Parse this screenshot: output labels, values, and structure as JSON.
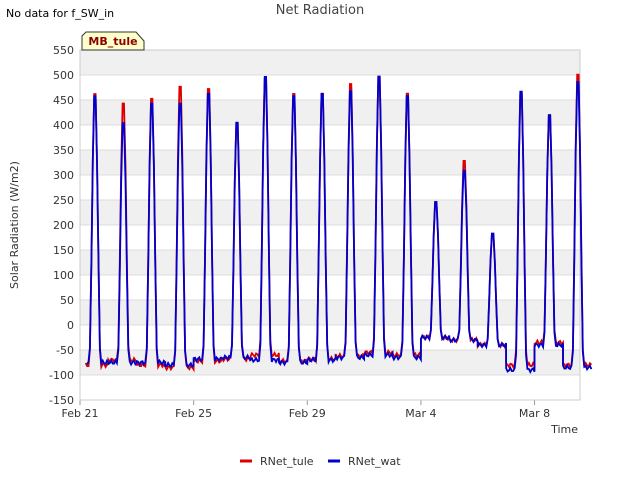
{
  "nodata_note": "No data for f_SW_in",
  "chart_data": {
    "type": "line",
    "title": "Net Radiation",
    "xlabel": "Time",
    "ylabel": "Solar Radiation (W/m2)",
    "site_badge": "MB_tule",
    "xlim": [
      0,
      44
    ],
    "ylim": [
      -150,
      550
    ],
    "yticks": [
      -150,
      -100,
      -50,
      0,
      50,
      100,
      150,
      200,
      250,
      300,
      350,
      400,
      450,
      500,
      550
    ],
    "xticks": [
      {
        "label": "Feb 21",
        "value": 0
      },
      {
        "label": "Feb 25",
        "value": 10
      },
      {
        "label": "Feb 29",
        "value": 20
      },
      {
        "label": "Mar 4",
        "value": 30
      },
      {
        "label": "Mar 8",
        "value": 40
      }
    ],
    "legend": {
      "position": "bottom-center"
    },
    "series": [
      {
        "name": "RNet_tule",
        "color": "#dd0000",
        "daily_peaks": [
          480,
          460,
          470,
          495,
          490,
          420,
          510,
          480,
          480,
          500,
          515,
          480,
          255,
          340,
          190,
          480,
          435,
          520
        ],
        "night_levels": [
          -80,
          -70,
          -80,
          -85,
          -72,
          -68,
          -60,
          -72,
          -68,
          -62,
          -55,
          -60,
          -25,
          -30,
          -40,
          -80,
          -35,
          -80
        ]
      },
      {
        "name": "RNet_wat",
        "color": "#0000cc",
        "daily_peaks": [
          475,
          420,
          460,
          460,
          480,
          420,
          515,
          475,
          480,
          485,
          515,
          475,
          255,
          320,
          190,
          485,
          435,
          505
        ],
        "night_levels": [
          -75,
          -75,
          -75,
          -80,
          -68,
          -65,
          -70,
          -75,
          -70,
          -65,
          -60,
          -65,
          -25,
          -30,
          -40,
          -90,
          -40,
          -85
        ]
      }
    ]
  }
}
